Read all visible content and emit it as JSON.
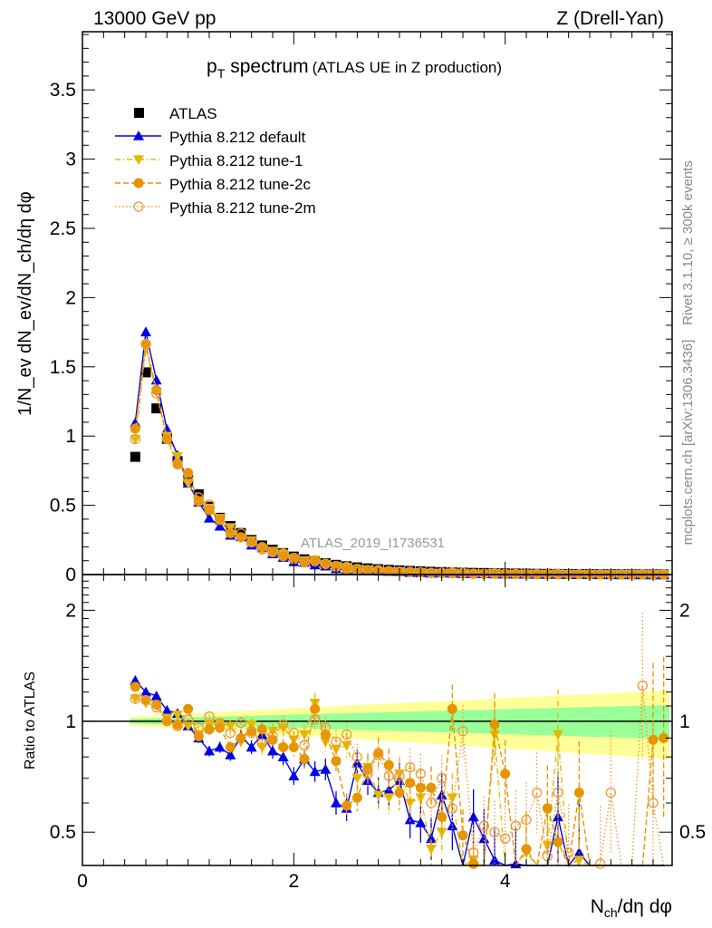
{
  "header": {
    "left": "13000 GeV pp",
    "right": "Z (Drell-Yan)"
  },
  "side_text": {
    "rivet": "Rivet 3.1.10, ≥ 300k events",
    "mcplots": "mcplots.cern.ch [arXiv:1306.3436]"
  },
  "analysis_id": "ATLAS_2019_I1736531",
  "chart_data": {
    "type": "scatter",
    "title_main": "p",
    "title_sub": "T",
    "title_rest": "spectrum",
    "title_paren": "(ATLAS UE in Z production)",
    "ylabel": "1/N_ev dN_ev/dN_ch/dη dφ",
    "ylabel_parts": {
      "a": "1/N",
      "b": "ev",
      "c": " dN",
      "d": "ev",
      "e": "/dN",
      "f": "ch",
      "g": "/dη dφ"
    },
    "xlabel_parts": {
      "a": "N",
      "b": "ch",
      "c": "/dη dφ"
    },
    "ratio_ylabel": "Ratio to ATLAS",
    "xlim": [
      0,
      5.58
    ],
    "ylim": [
      0,
      3.92
    ],
    "ratio_ylim": [
      0.406,
      2.5
    ],
    "ratio_scale": "log",
    "x_ticks": [
      "0",
      "2",
      "4"
    ],
    "y_ticks": [
      "0",
      "0.5",
      "1",
      "1.5",
      "2",
      "2.5",
      "3",
      "3.5"
    ],
    "ratio_ticks": [
      "0.5",
      "1",
      "2"
    ],
    "legend_placement": "top-left",
    "x": [
      0.5,
      0.6,
      0.7,
      0.8,
      0.9,
      1.0,
      1.1,
      1.2,
      1.3,
      1.4,
      1.5,
      1.6,
      1.7,
      1.8,
      1.9,
      2.0,
      2.1,
      2.2,
      2.3,
      2.4,
      2.5,
      2.6,
      2.7,
      2.8,
      2.9,
      3.0,
      3.1,
      3.2,
      3.3,
      3.4,
      3.5,
      3.6,
      3.7,
      3.8,
      3.9,
      4.0,
      4.1,
      4.2,
      4.3,
      4.4,
      4.5,
      4.6,
      4.7,
      4.8,
      4.9,
      5.0,
      5.1,
      5.2,
      5.3,
      5.4,
      5.5
    ],
    "data": {
      "name": "ATLAS",
      "color": "#000000",
      "values": [
        0.85,
        1.46,
        1.2,
        0.98,
        0.82,
        0.68,
        0.58,
        0.49,
        0.41,
        0.35,
        0.3,
        0.25,
        0.21,
        0.18,
        0.155,
        0.13,
        0.11,
        0.095,
        0.082,
        0.07,
        0.06,
        0.052,
        0.045,
        0.039,
        0.034,
        0.03,
        0.026,
        0.023,
        0.02,
        0.018,
        0.016,
        0.014,
        0.012,
        0.011,
        0.0095,
        0.0083,
        0.0073,
        0.0064,
        0.0056,
        0.0049,
        0.0043,
        0.0038,
        0.0034,
        0.003,
        0.0026,
        0.0023,
        0.002,
        0.0018,
        0.0016,
        0.0014,
        0.0012
      ],
      "band_inner_halfwidth": [
        0.015,
        0.009
      ],
      "band_outer_halfwidth": [
        0.03,
        0.018
      ],
      "band_inner_color": "#99ff99",
      "band_outer_color": "#ffff99"
    },
    "series": [
      {
        "name": "Pythia 8.212 default",
        "color": "#0000e6",
        "marker": "triangle-up",
        "line": "solid",
        "ratio": [
          1.29,
          1.2,
          1.17,
          1.07,
          1.05,
          0.97,
          0.9,
          0.83,
          0.85,
          0.81,
          0.91,
          0.85,
          0.92,
          0.83,
          0.8,
          0.71,
          0.79,
          0.73,
          0.74,
          0.6,
          0.58,
          0.77,
          0.69,
          0.64,
          0.65,
          0.69,
          0.54,
          0.53,
          0.48,
          0.63,
          0.52,
          0.4,
          0.55,
          0.48,
          0.42,
          0.3,
          0.41,
          0.3,
          0.3,
          0.3,
          0.55,
          0.3,
          0.44,
          0.3,
          0.3,
          0.3,
          0.3,
          0.3,
          0.3,
          0.3,
          0.3
        ]
      },
      {
        "name": "Pythia 8.212 tune-1",
        "color": "#e6b800",
        "marker": "triangle-down",
        "line": "dashdot",
        "ratio": [
          1.15,
          1.12,
          1.1,
          1.02,
          1.04,
          0.97,
          0.92,
          0.98,
          0.99,
          0.97,
          0.88,
          0.98,
          0.85,
          0.94,
          0.96,
          0.89,
          0.92,
          1.12,
          0.88,
          0.84,
          0.86,
          0.7,
          0.75,
          0.63,
          0.62,
          0.72,
          0.6,
          0.62,
          0.45,
          0.5,
          0.62,
          0.36,
          0.42,
          0.38,
          0.92,
          0.3,
          0.3,
          0.44,
          0.3,
          0.46,
          0.92,
          0.3,
          0.42,
          0.3,
          0.3,
          0.38,
          0.36,
          0.3,
          0.3,
          0.3,
          0.3
        ]
      },
      {
        "name": "Pythia 8.212 tune-2c",
        "color": "#e69500",
        "marker": "circle",
        "line": "dashed",
        "ratio": [
          1.24,
          1.14,
          1.11,
          1.0,
          0.98,
          1.08,
          0.91,
          0.95,
          0.96,
          0.85,
          0.9,
          0.94,
          0.95,
          0.89,
          0.85,
          0.85,
          0.79,
          1.08,
          0.92,
          0.78,
          0.59,
          0.62,
          0.74,
          0.82,
          0.76,
          0.64,
          0.68,
          0.66,
          0.66,
          0.55,
          1.08,
          0.49,
          0.41,
          0.3,
          0.98,
          0.72,
          0.3,
          0.45,
          0.3,
          0.58,
          0.47,
          0.3,
          0.64,
          0.3,
          0.3,
          0.3,
          0.3,
          0.3,
          0.3,
          0.89,
          0.9
        ]
      },
      {
        "name": "Pythia 8.212 tune-2m",
        "color": "#ee9933",
        "marker": "open-circle",
        "line": "dotted",
        "ratio": [
          1.15,
          1.14,
          1.09,
          1.0,
          0.97,
          1.01,
          0.96,
          1.03,
          0.98,
          0.93,
          0.99,
          0.93,
          0.87,
          0.91,
          0.98,
          0.93,
          0.86,
          1.01,
          0.96,
          0.88,
          0.92,
          0.8,
          0.72,
          0.81,
          0.71,
          0.71,
          0.75,
          0.72,
          0.6,
          0.7,
          0.58,
          0.94,
          0.44,
          0.52,
          0.5,
          0.48,
          0.52,
          0.54,
          0.64,
          0.43,
          0.64,
          0.44,
          0.36,
          0.36,
          0.41,
          0.64,
          0.3,
          0.4,
          1.25,
          0.6,
          0.3
        ]
      }
    ]
  }
}
